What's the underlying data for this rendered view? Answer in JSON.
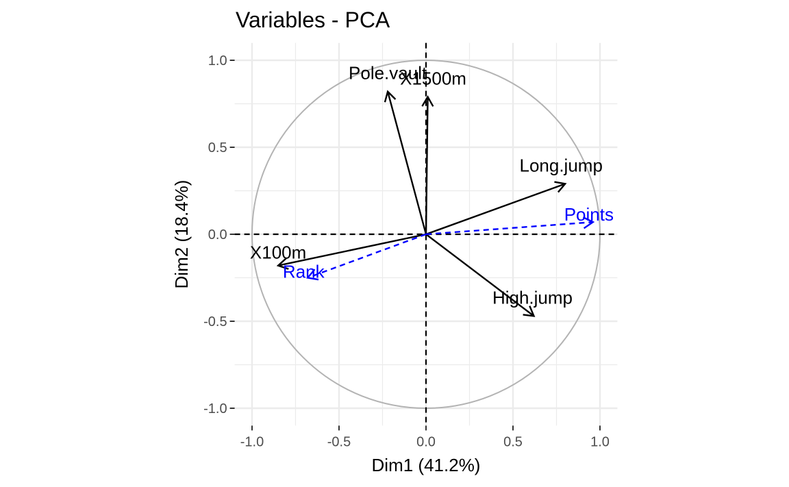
{
  "chart_data": {
    "type": "scatter",
    "title": "Variables - PCA",
    "xlabel": "Dim1 (41.2%)",
    "ylabel": "Dim2 (18.4%)",
    "xlim": [
      -1.1,
      1.1
    ],
    "ylim": [
      -1.1,
      1.1
    ],
    "x_ticks": [
      -1.0,
      -0.5,
      0.0,
      0.5,
      1.0
    ],
    "y_ticks": [
      -1.0,
      -0.5,
      0.0,
      0.5,
      1.0
    ],
    "x_tick_labels": [
      "-1.0",
      "-0.5",
      "0.0",
      "0.5",
      "1.0"
    ],
    "y_tick_labels": [
      "-1.0",
      "-0.5",
      "0.0",
      "0.5",
      "1.0"
    ],
    "grid": true,
    "correlation_circle": true,
    "active_color": "#000000",
    "supplementary_color": "#0000ff",
    "circle_color": "#b3b3b3",
    "grid_color": "#ebebeb",
    "variables": [
      {
        "name": "Pole.vault",
        "x": -0.22,
        "y": 0.82,
        "supplementary": false
      },
      {
        "name": "X1500m",
        "x": 0.01,
        "y": 0.79,
        "supplementary": false
      },
      {
        "name": "Long.jump",
        "x": 0.8,
        "y": 0.29,
        "supplementary": false
      },
      {
        "name": "X100m",
        "x": -0.85,
        "y": -0.18,
        "supplementary": false
      },
      {
        "name": "High.jump",
        "x": 0.62,
        "y": -0.47,
        "supplementary": false
      },
      {
        "name": "Points",
        "x": 0.96,
        "y": 0.07,
        "supplementary": true
      },
      {
        "name": "Rank",
        "x": -0.68,
        "y": -0.25,
        "supplementary": true
      }
    ]
  }
}
